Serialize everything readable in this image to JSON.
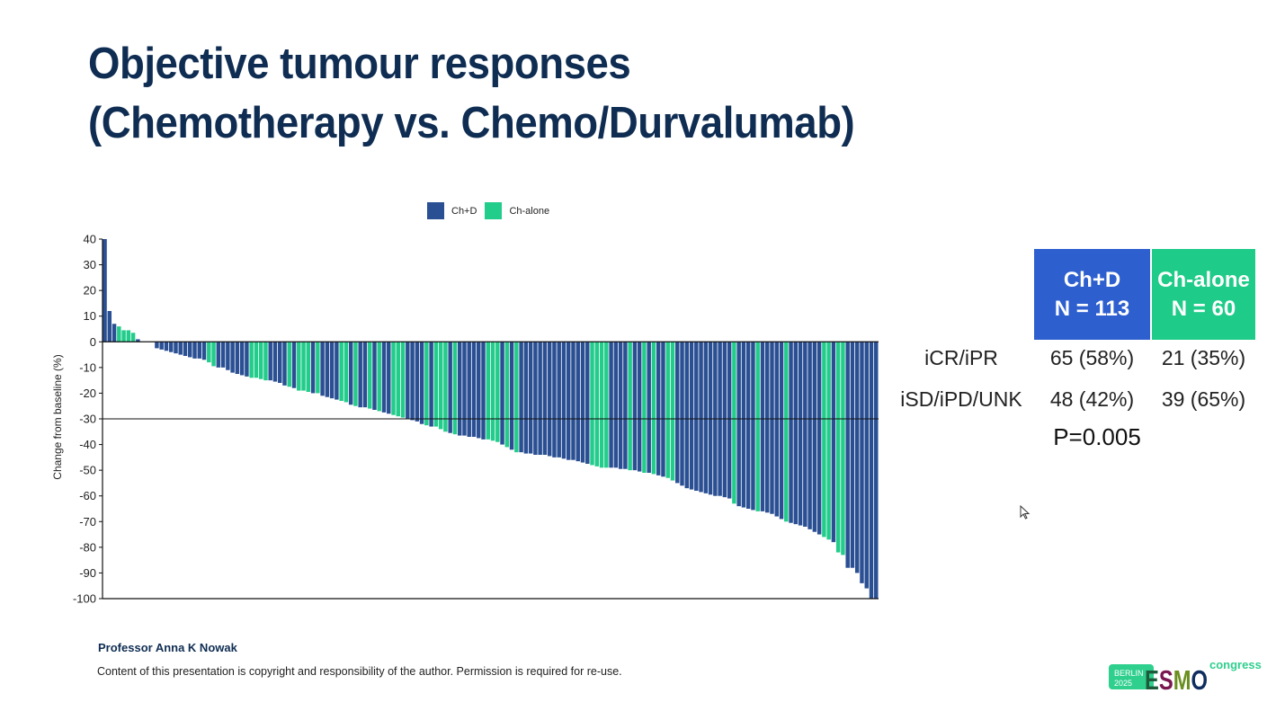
{
  "slide": {
    "title_line1": "Objective tumour responses",
    "title_line2": "(Chemotherapy vs. Chemo/Durvalumab)",
    "author": "Professor Anna K Nowak",
    "copyright": "Content of this presentation is copyright and responsibility of the author. Permission is required for re-use.",
    "logo": {
      "city": "BERLIN",
      "year": "2025",
      "brand": "ESMO",
      "suffix": "congress"
    }
  },
  "table": {
    "headers": [
      {
        "name": "Ch+D",
        "n": "N = 113",
        "color": "#2d5fcf"
      },
      {
        "name": "Ch-alone",
        "n": "N = 60",
        "color": "#1fcb88"
      }
    ],
    "rows": [
      {
        "label": "iCR/iPR",
        "values": [
          "65 (58%)",
          "21 (35%)"
        ]
      },
      {
        "label": "iSD/iPD/UNK",
        "values": [
          "48 (42%)",
          "39 (65%)"
        ]
      }
    ],
    "p_value": "P=0.005"
  },
  "chart_data": {
    "type": "bar",
    "subtype": "waterfall",
    "title": "",
    "xlabel": "",
    "ylabel": "Change from baseline (%)",
    "ylim": [
      -100,
      40
    ],
    "yticks": [
      40,
      30,
      20,
      10,
      0,
      -10,
      -20,
      -30,
      -40,
      -50,
      -60,
      -70,
      -80,
      -90,
      -100
    ],
    "reference_line": -30,
    "legend": {
      "placement": "top-center",
      "entries": [
        {
          "label": "Ch+D",
          "key": "D",
          "color": "#2a4f93"
        },
        {
          "label": "Ch-alone",
          "key": "A",
          "color": "#22cc8a"
        }
      ]
    },
    "values": [
      40,
      12,
      7,
      6,
      4.5,
      4.5,
      3.5,
      1,
      0,
      0,
      0,
      -2.5,
      -3,
      -3.5,
      -4,
      -4.5,
      -5,
      -5.5,
      -6,
      -6.5,
      -6.5,
      -7,
      -8,
      -9.5,
      -10,
      -10,
      -11,
      -12,
      -12.5,
      -13,
      -13.5,
      -14,
      -14,
      -14.5,
      -15,
      -15,
      -15.5,
      -16,
      -17,
      -17.5,
      -18,
      -19,
      -19,
      -19.5,
      -20,
      -20,
      -21,
      -21.5,
      -22,
      -22.5,
      -23,
      -23.5,
      -24.5,
      -25,
      -25.5,
      -25.5,
      -26,
      -26.5,
      -27,
      -27.5,
      -28,
      -28.5,
      -29,
      -29.5,
      -30,
      -30.5,
      -31,
      -32,
      -32.5,
      -33,
      -33,
      -34,
      -35,
      -35.5,
      -36,
      -36.5,
      -36.5,
      -37,
      -37,
      -37.5,
      -38,
      -38,
      -38.5,
      -39,
      -40,
      -41,
      -42,
      -43,
      -43,
      -43.5,
      -43.5,
      -44,
      -44,
      -44,
      -44.5,
      -45,
      -45,
      -45.5,
      -46,
      -46,
      -46.5,
      -47,
      -47.5,
      -48,
      -48.5,
      -49,
      -49,
      -49,
      -49,
      -49.5,
      -49.5,
      -50,
      -50,
      -50.5,
      -51,
      -51,
      -51.5,
      -52,
      -52.5,
      -53,
      -54,
      -55,
      -56,
      -57,
      -57.5,
      -58,
      -58.5,
      -59,
      -59.5,
      -60,
      -60,
      -60.5,
      -61,
      -63,
      -64,
      -64.5,
      -65,
      -65.5,
      -66,
      -66,
      -66.5,
      -67,
      -68,
      -69,
      -70,
      -70.5,
      -71,
      -71.5,
      -72,
      -73,
      -74,
      -75,
      -76,
      -77,
      -78,
      -82,
      -83,
      -88,
      -88,
      -90,
      -94,
      -96,
      -100,
      -100
    ],
    "ch_alone_indices": [
      3,
      4,
      5,
      6,
      22,
      23,
      31,
      32,
      33,
      34,
      39,
      41,
      42,
      43,
      45,
      50,
      51,
      53,
      56,
      58,
      61,
      62,
      63,
      68,
      70,
      71,
      72,
      74,
      81,
      82,
      83,
      85,
      87,
      103,
      104,
      105,
      106,
      111,
      114,
      116,
      119,
      120,
      133,
      138,
      144,
      152,
      153,
      155,
      156
    ]
  }
}
